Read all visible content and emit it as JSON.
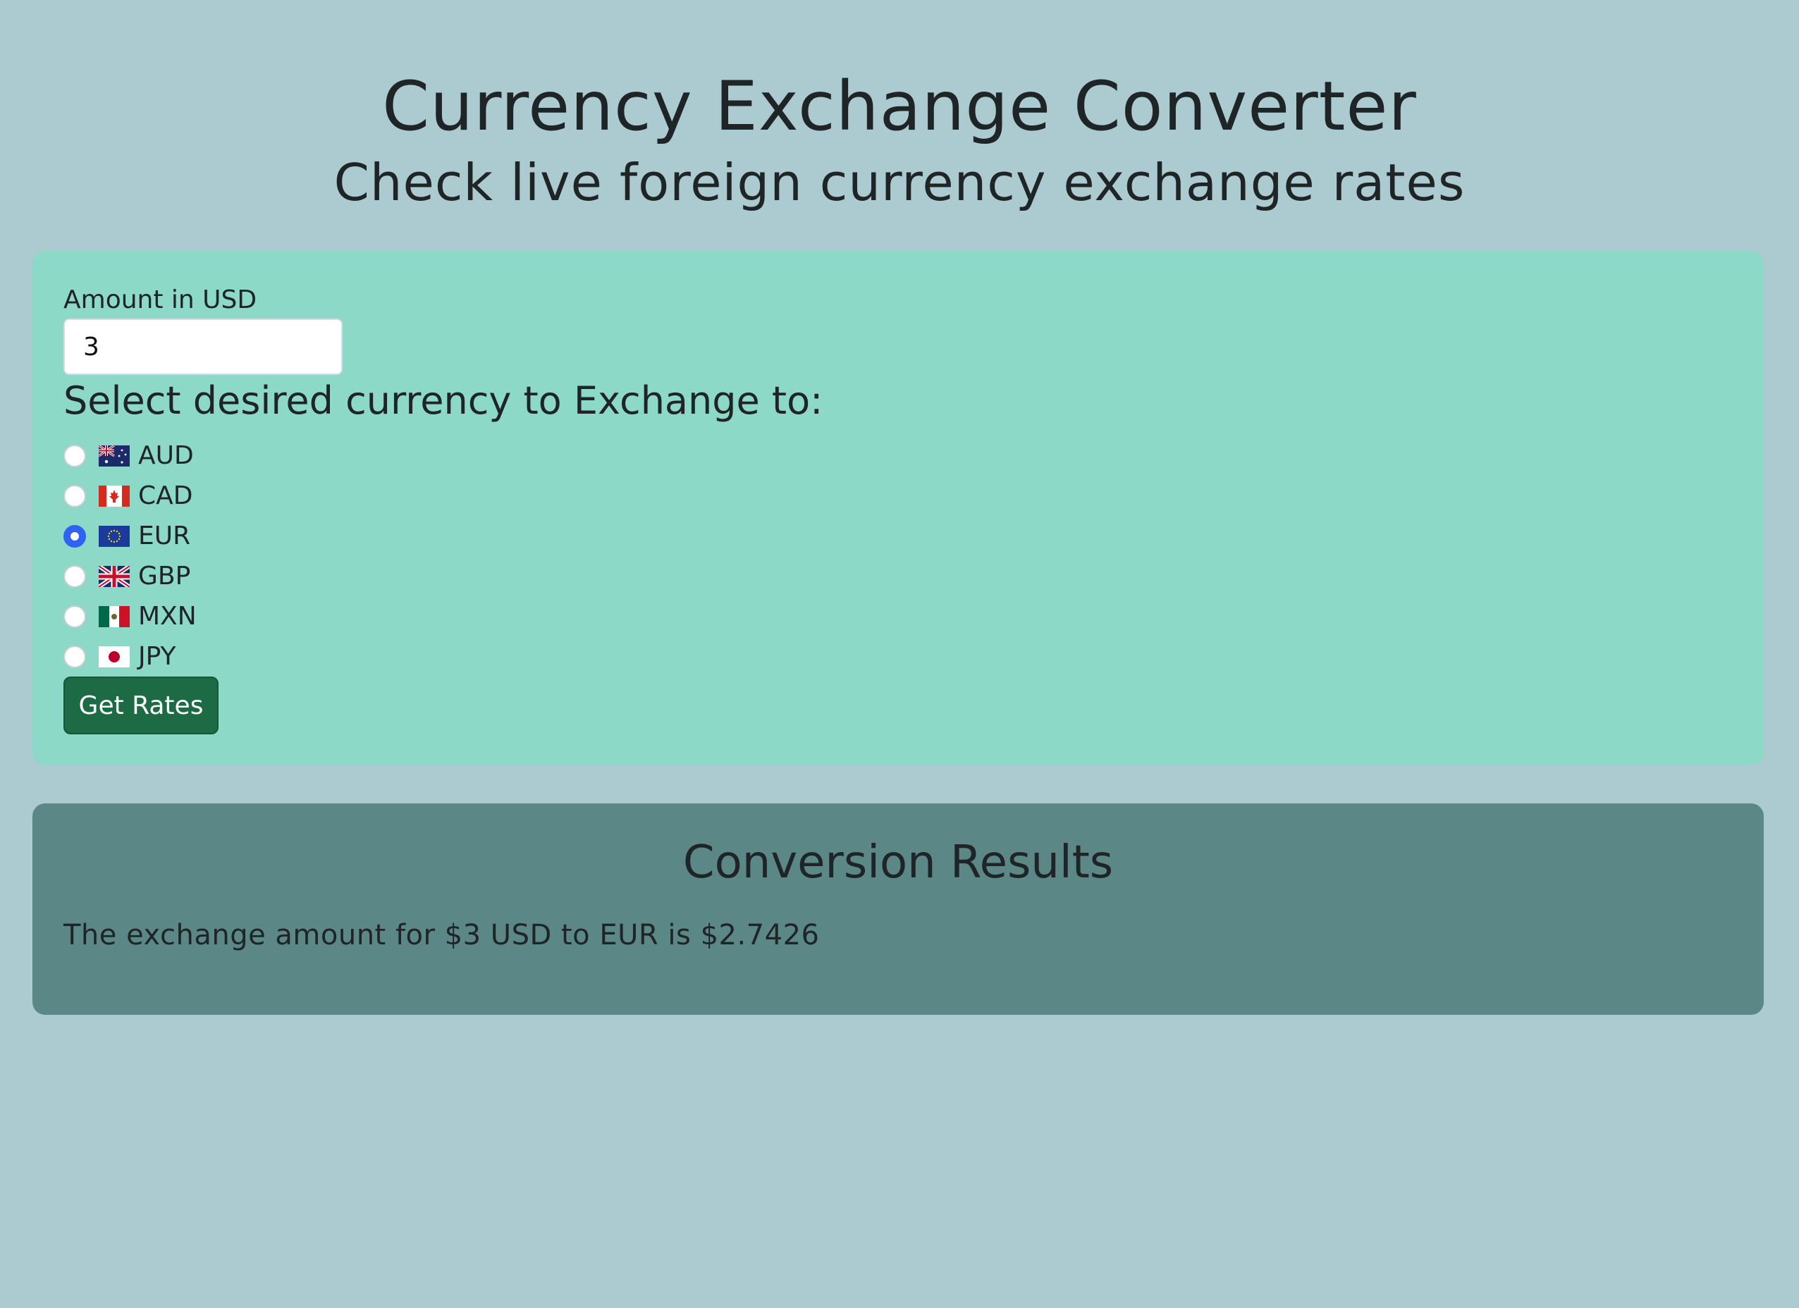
{
  "header": {
    "title": "Currency Exchange Converter",
    "subtitle": "Check live foreign currency exchange rates"
  },
  "form": {
    "amount_label": "Amount in USD",
    "amount_value": "3",
    "select_label": "Select desired currency to Exchange to:",
    "currencies": [
      {
        "code": "AUD",
        "flag_icon": "australia-flag-icon",
        "selected": false
      },
      {
        "code": "CAD",
        "flag_icon": "canada-flag-icon",
        "selected": false
      },
      {
        "code": "EUR",
        "flag_icon": "eu-flag-icon",
        "selected": true
      },
      {
        "code": "GBP",
        "flag_icon": "uk-flag-icon",
        "selected": false
      },
      {
        "code": "MXN",
        "flag_icon": "mexico-flag-icon",
        "selected": false
      },
      {
        "code": "JPY",
        "flag_icon": "japan-flag-icon",
        "selected": false
      }
    ],
    "submit_label": "Get Rates"
  },
  "results": {
    "title": "Conversion Results",
    "text": "The exchange amount for $3 USD to EUR is $2.7426"
  },
  "colors": {
    "background": "#accbd0",
    "form_card": "#8cd9c8",
    "results_card": "#5c8787",
    "button": "#1d6b44",
    "radio_selected": "#2f62f4"
  }
}
